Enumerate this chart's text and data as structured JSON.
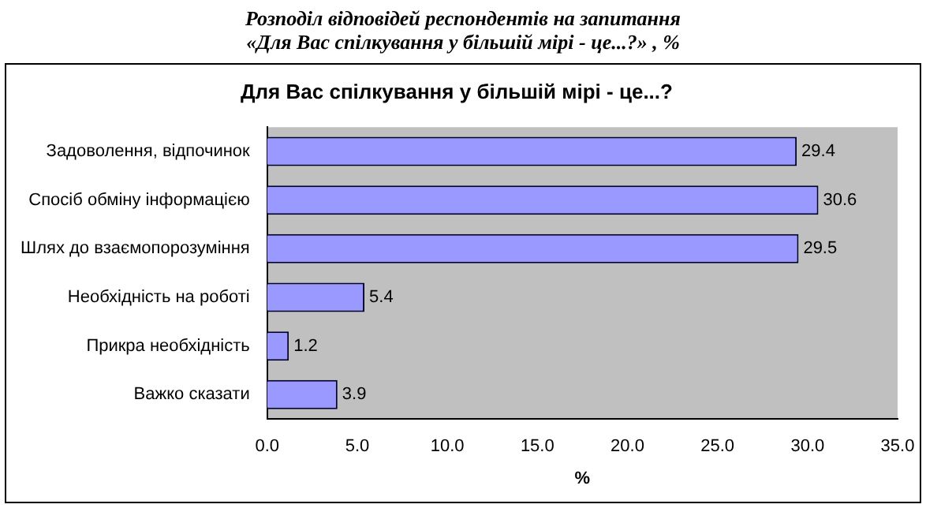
{
  "chart_data": {
    "type": "bar",
    "orientation": "horizontal",
    "title": "Розподіл відповідей респондентів на запитання\n«Для Вас спілкування у більшій мірі - це...?» , %",
    "subtitle": "Для Вас спілкування у більшій мірі - це...?",
    "xlabel": "%",
    "categories": [
      "Задоволення, відпочинок",
      "Спосіб обміну інформацією",
      "Шлях до взаємопорозуміння",
      "Необхідність на роботі",
      "Прикра необхідність",
      "Важко сказати"
    ],
    "values": [
      29.4,
      30.6,
      29.5,
      5.4,
      1.2,
      3.9
    ],
    "color": "#9999ff",
    "data_labels": true,
    "grid": false,
    "legend": false,
    "xlim": [
      0,
      35
    ],
    "xticks": [
      {
        "value": 0,
        "label": "0.0"
      },
      {
        "value": 5,
        "label": "5.0"
      },
      {
        "value": 10,
        "label": "10.0"
      },
      {
        "value": 15,
        "label": "15.0"
      },
      {
        "value": 20,
        "label": "20.0"
      },
      {
        "value": 25,
        "label": "25.0"
      },
      {
        "value": 30,
        "label": "30.0"
      },
      {
        "value": 35,
        "label": "35.0"
      }
    ]
  }
}
